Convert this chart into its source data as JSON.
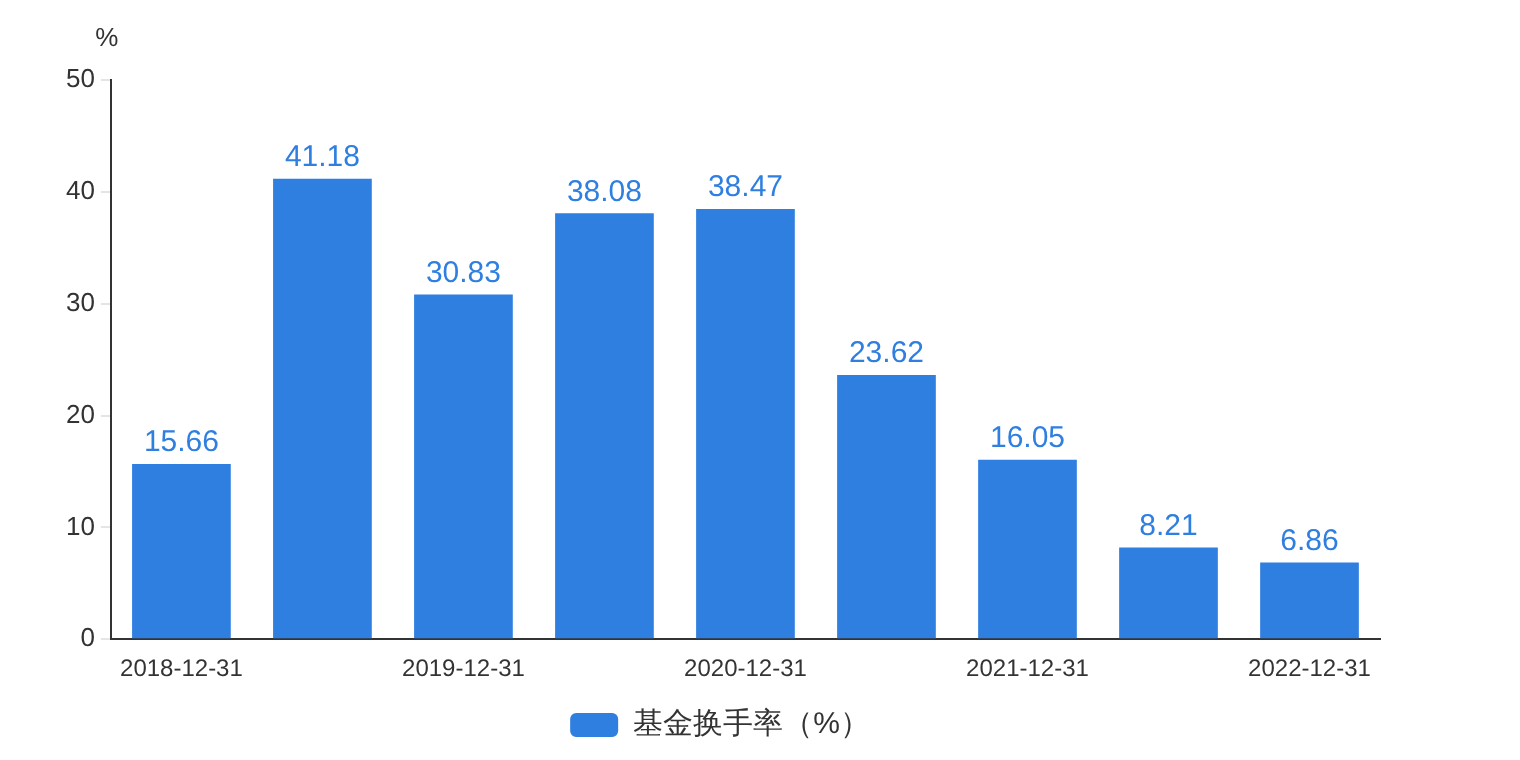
{
  "chart_data": {
    "type": "bar",
    "ylabel": "%",
    "categories": [
      "2018-12-31",
      null,
      "2019-12-31",
      null,
      "2020-12-31",
      null,
      "2021-12-31",
      null,
      "2022-12-31"
    ],
    "series": [
      {
        "name": "基金换手率（%）",
        "color": "#2f7fe0",
        "values": [
          15.66,
          41.18,
          30.83,
          38.08,
          38.47,
          23.62,
          16.05,
          8.21,
          6.86
        ]
      }
    ],
    "ylim": [
      0,
      50
    ],
    "yticks": [
      0,
      10,
      20,
      30,
      40,
      50
    ],
    "grid": false,
    "legend": "bottom",
    "data_labels": true
  }
}
